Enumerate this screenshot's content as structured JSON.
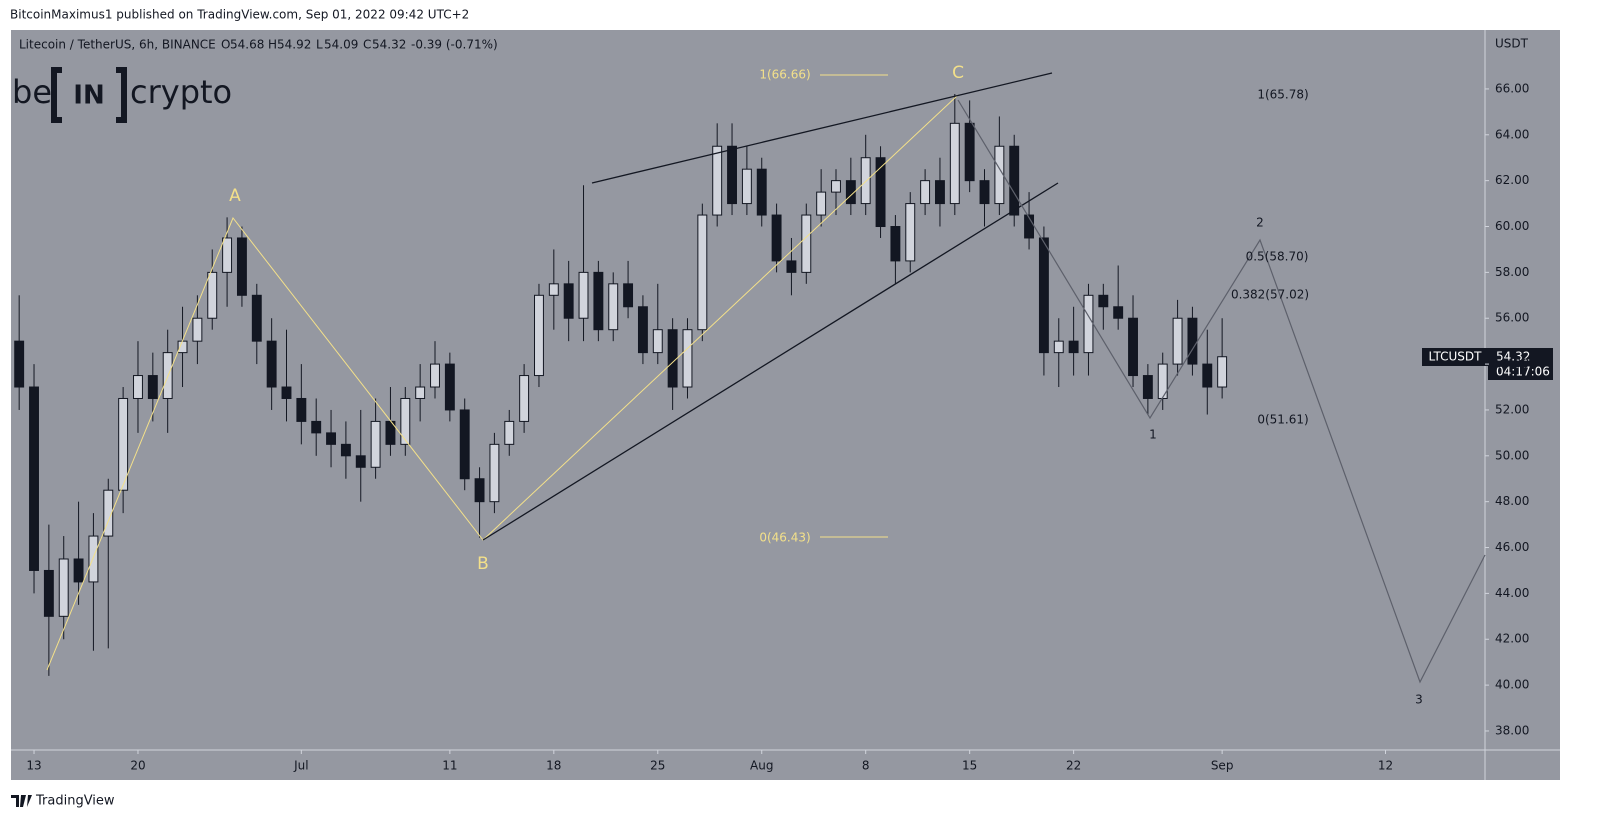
{
  "header": {
    "publisher": "BitcoinMaximus1 published on TradingView.com, Sep 01, 2022 09:42 UTC+2"
  },
  "legend": {
    "symbol": "Litecoin / TetherUS, 6h, BINANCE",
    "o_label": "O",
    "o": "54.68",
    "h_label": "H",
    "h": "54.92",
    "l_label": "L",
    "l": "54.09",
    "c_label": "C",
    "c": "54.32",
    "change": "-0.39 (-0.71%)"
  },
  "logo": {
    "left": "be",
    "middle": "IN",
    "right": "crypto"
  },
  "price_tag": {
    "ticker": "LTCUSDT",
    "price": "54.32",
    "countdown": "04:17:06"
  },
  "footer": {
    "brand": "TradingView"
  },
  "annotations": {
    "a": "A",
    "b": "B",
    "c": "C",
    "fib_top": "1(66.66)",
    "fib_bottom": "0(46.43)",
    "ext_1": "1(65.78)",
    "ext_05": "0.5(58.70)",
    "ext_0382": "0.382(57.02)",
    "ext_0": "0(51.61)",
    "wave_1": "1",
    "wave_2": "2",
    "wave_3": "3"
  },
  "chart_data": {
    "type": "candlestick",
    "y_axis_title": "USDT",
    "up_color": "#d1d4dc",
    "down_color": "#131722",
    "xlim": [
      -1.55,
      97.7
    ],
    "ylim": [
      37.17,
      68.57
    ],
    "xticks": [
      {
        "value": 0,
        "label": "13"
      },
      {
        "value": 7,
        "label": "20"
      },
      {
        "value": 18,
        "label": "Jul"
      },
      {
        "value": 28,
        "label": "11"
      },
      {
        "value": 35,
        "label": "18"
      },
      {
        "value": 42,
        "label": "25"
      },
      {
        "value": 49,
        "label": "Aug"
      },
      {
        "value": 56,
        "label": "8"
      },
      {
        "value": 63,
        "label": "15"
      },
      {
        "value": 70,
        "label": "22"
      },
      {
        "value": 80,
        "label": "Sep"
      },
      {
        "value": 91,
        "label": "12"
      }
    ],
    "yticks": [
      {
        "value": 38,
        "label": "38.00"
      },
      {
        "value": 40,
        "label": "40.00"
      },
      {
        "value": 42,
        "label": "42.00"
      },
      {
        "value": 44,
        "label": "44.00"
      },
      {
        "value": 46,
        "label": "46.00"
      },
      {
        "value": 48,
        "label": "48.00"
      },
      {
        "value": 50,
        "label": "50.00"
      },
      {
        "value": 52,
        "label": "52.00"
      },
      {
        "value": 54,
        "label": "54.00"
      },
      {
        "value": 56,
        "label": "56.00"
      },
      {
        "value": 58,
        "label": "58.00"
      },
      {
        "value": 60,
        "label": "60.00"
      },
      {
        "value": 62,
        "label": "62.00"
      },
      {
        "value": 64,
        "label": "64.00"
      },
      {
        "value": 66,
        "label": "66.00"
      }
    ],
    "x": [
      -1,
      0,
      1,
      2,
      3,
      4,
      5,
      6,
      7,
      8,
      9,
      10,
      11,
      12,
      13,
      14,
      15,
      16,
      17,
      18,
      19,
      20,
      21,
      22,
      23,
      24,
      25,
      26,
      27,
      28,
      29,
      30,
      31,
      32,
      33,
      34,
      35,
      36,
      37,
      38,
      39,
      40,
      41,
      42,
      43,
      44,
      45,
      46,
      47,
      48,
      49,
      50,
      51,
      52,
      53,
      54,
      55,
      56,
      57,
      58,
      59,
      60,
      61,
      62,
      63,
      64,
      65,
      66,
      67,
      68,
      69,
      70,
      71,
      72,
      73,
      74,
      75,
      76,
      77,
      78,
      79,
      80
    ],
    "open": [
      55,
      53,
      45,
      43,
      45.5,
      44.5,
      46.5,
      48.5,
      52.5,
      53.5,
      52.5,
      54.5,
      55,
      56,
      58,
      59.5,
      57,
      55,
      53,
      52.5,
      51.5,
      51,
      50.5,
      50,
      49.5,
      51.5,
      50.5,
      52.5,
      53,
      54,
      52,
      49,
      48,
      50.5,
      51.5,
      53.5,
      57,
      57.5,
      56,
      58,
      55.5,
      57.5,
      56.5,
      54.5,
      55.5,
      53,
      55.5,
      60.5,
      63.5,
      61,
      62.5,
      60.5,
      58.5,
      58,
      60.5,
      61.5,
      62,
      61,
      63,
      60,
      58.5,
      61,
      62,
      61,
      64.5,
      62,
      61,
      63.5,
      60.5,
      59.5,
      54.5,
      55,
      54.5,
      57,
      56.5,
      56,
      53.5,
      52.5,
      54,
      56,
      54,
      53
    ],
    "high": [
      57,
      54,
      47,
      46.5,
      48,
      47.5,
      49,
      53,
      55,
      54.5,
      55.5,
      56.5,
      57,
      59,
      60.4,
      60,
      57.5,
      56,
      55.5,
      54,
      52.5,
      52,
      51.5,
      52,
      52.5,
      53,
      53,
      54,
      55,
      54.5,
      52.5,
      49.5,
      51,
      52,
      54,
      57.5,
      59,
      58.5,
      61.8,
      58.5,
      58,
      58.5,
      57,
      57.5,
      56,
      56,
      61,
      64.5,
      64.5,
      63.5,
      63,
      61,
      59.5,
      61,
      62.5,
      62.5,
      63,
      64,
      63.5,
      60.5,
      61.5,
      62.5,
      63,
      65.78,
      65.5,
      62.5,
      64.8,
      64,
      61.5,
      60,
      56,
      56.5,
      57.5,
      57.5,
      58.3,
      57,
      54,
      54.5,
      56.8,
      56.5,
      55.5,
      56
    ],
    "low": [
      52,
      44,
      40.4,
      42,
      43.5,
      41.5,
      41.6,
      47.5,
      51,
      51.5,
      51,
      53,
      54,
      55.5,
      56.5,
      56.5,
      54,
      52,
      51.5,
      50.5,
      50,
      49.5,
      49,
      48,
      49,
      50,
      50,
      51.5,
      52.5,
      51.5,
      48.5,
      46.43,
      47.5,
      50,
      51,
      53,
      55.5,
      55,
      55,
      55,
      55,
      56,
      54,
      54,
      52,
      52.5,
      55,
      60,
      60.5,
      60.5,
      60,
      58,
      57,
      57.5,
      60,
      60.5,
      60.5,
      60.5,
      59.5,
      57.5,
      58,
      60.5,
      60,
      60.5,
      61.5,
      60,
      60.5,
      60,
      59,
      53.5,
      53,
      53.5,
      53.5,
      55.5,
      55.5,
      53,
      51.8,
      52,
      53.5,
      53.5,
      51.8,
      52.5
    ],
    "close": [
      53,
      45,
      43,
      45.5,
      44.5,
      46.5,
      48.5,
      52.5,
      53.5,
      52.5,
      54.5,
      55,
      56,
      58,
      59.5,
      57,
      55,
      53,
      52.5,
      51.5,
      51,
      50.5,
      50,
      49.5,
      51.5,
      50.5,
      52.5,
      53,
      54,
      52,
      49,
      48,
      50.5,
      51.5,
      53.5,
      57,
      57.5,
      56,
      58,
      55.5,
      57.5,
      56.5,
      54.5,
      55.5,
      53,
      55.5,
      60.5,
      63.5,
      61,
      62.5,
      60.5,
      58.5,
      58,
      60.5,
      61.5,
      62,
      61,
      63,
      60,
      58.5,
      61,
      62,
      61,
      64.5,
      62,
      61,
      63.5,
      60.5,
      59.5,
      54.5,
      55,
      54.5,
      57,
      56.5,
      56,
      53.5,
      52.5,
      54,
      56,
      54,
      53,
      54.32
    ]
  }
}
